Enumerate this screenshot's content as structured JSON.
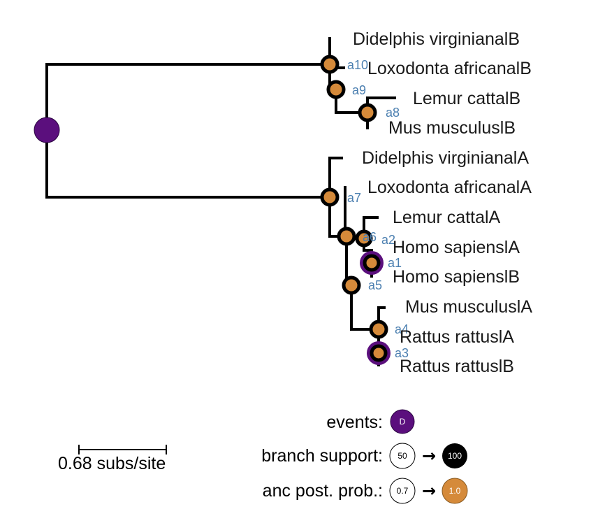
{
  "colors": {
    "duplication_event": "#5b0f7d",
    "anc_post_prob_high": "#d58a3a",
    "branch_support_high": "#000000",
    "node_label": "#4b7fb0",
    "branch": "#000000"
  },
  "tree": {
    "leaves": [
      "Didelphis virginianalB",
      "Loxodonta africanalB",
      "Lemur cattalB",
      "Mus musculuslB",
      "Didelphis virginianalA",
      "Loxodonta africanalA",
      "Lemur cattalA",
      "Homo sapienslA",
      "Homo sapienslB",
      "Mus musculuslA",
      "Rattus rattuslA",
      "Rattus rattuslB"
    ],
    "internal_nodes": [
      "a10",
      "a9",
      "a8",
      "a7",
      "a6",
      "a2",
      "a1",
      "a5",
      "a4",
      "a3"
    ]
  },
  "legend": {
    "events_label": "events:",
    "events_symbol": "D",
    "branch_support_label": "branch support:",
    "branch_support_low": "50",
    "branch_support_high": "100",
    "anc_post_prob_label": "anc post. prob.:",
    "anc_post_prob_low": "0.7",
    "anc_post_prob_high": "1.0",
    "arrow": "→"
  },
  "scale_bar": {
    "label": "0.68 subs/site"
  }
}
